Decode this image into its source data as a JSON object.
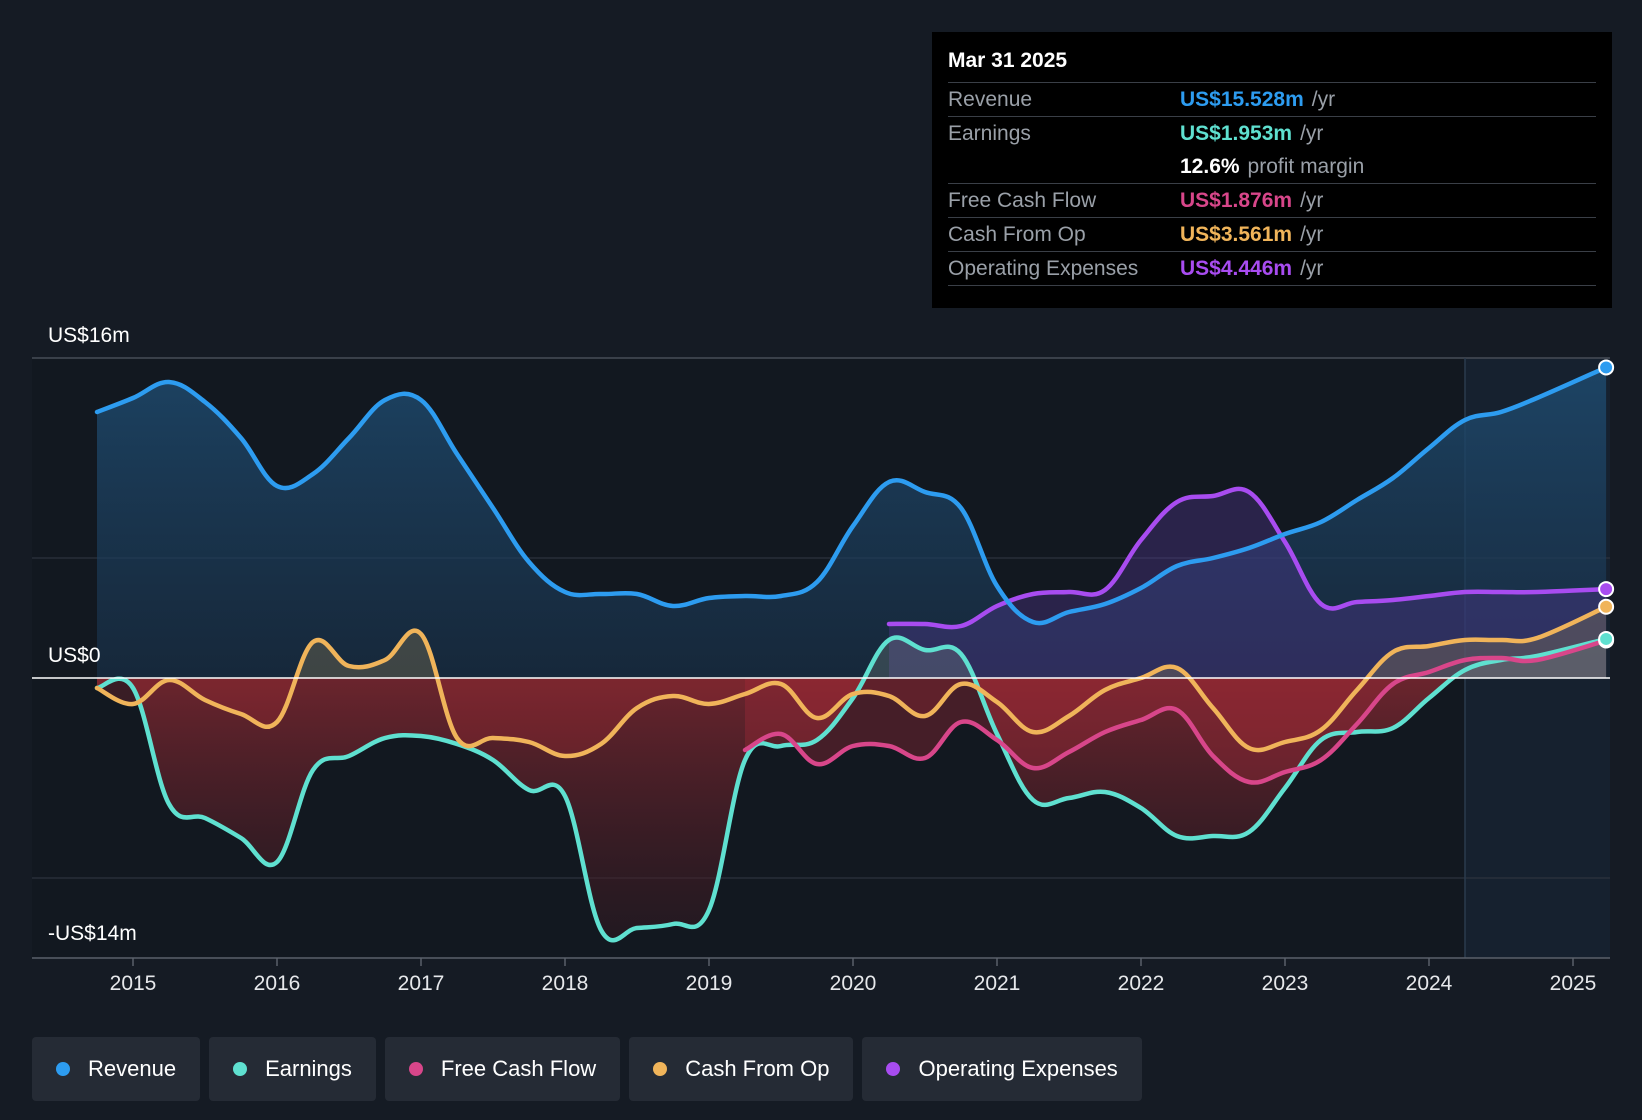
{
  "tooltip": {
    "date": "Mar 31 2025",
    "rows": [
      {
        "name": "Revenue",
        "value": "US$15.528m",
        "unit": "/yr",
        "color": "#2d9cf0"
      },
      {
        "name": "Earnings",
        "value": "US$1.953m",
        "unit": "/yr",
        "color": "#5fe0d0"
      },
      {
        "name": "",
        "value": "12.6%",
        "unit": "profit margin",
        "color": "#ffffff"
      },
      {
        "name": "Free Cash Flow",
        "value": "US$1.876m",
        "unit": "/yr",
        "color": "#d8468a"
      },
      {
        "name": "Cash From Op",
        "value": "US$3.561m",
        "unit": "/yr",
        "color": "#f0b45a"
      },
      {
        "name": "Operating Expenses",
        "value": "US$4.446m",
        "unit": "/yr",
        "color": "#a84cf0"
      }
    ]
  },
  "chart_data": {
    "type": "line",
    "title": "",
    "xlabel": "",
    "ylabel": "",
    "ylim": [
      -14,
      16
    ],
    "y_tick_labels": [
      {
        "value": 16,
        "label": "US$16m"
      },
      {
        "value": 0,
        "label": "US$0"
      },
      {
        "value": -14,
        "label": "-US$14m"
      }
    ],
    "x_ticks": [
      2015,
      2016,
      2017,
      2018,
      2019,
      2020,
      2021,
      2022,
      2023,
      2024,
      2025
    ],
    "x_range": [
      2014.3,
      2025.23
    ],
    "forecast_start": 2024.25,
    "series": [
      {
        "name": "Revenue",
        "color": "#2d9cf0",
        "points": [
          [
            2014.75,
            13.3
          ],
          [
            2015.0,
            14.0
          ],
          [
            2015.25,
            14.8
          ],
          [
            2015.5,
            13.8
          ],
          [
            2015.75,
            12.0
          ],
          [
            2016.0,
            9.6
          ],
          [
            2016.25,
            10.2
          ],
          [
            2016.5,
            12.0
          ],
          [
            2016.75,
            13.9
          ],
          [
            2017.0,
            13.9
          ],
          [
            2017.25,
            11.2
          ],
          [
            2017.5,
            8.5
          ],
          [
            2017.75,
            5.8
          ],
          [
            2018.0,
            4.3
          ],
          [
            2018.25,
            4.2
          ],
          [
            2018.5,
            4.2
          ],
          [
            2018.75,
            3.6
          ],
          [
            2019.0,
            4.0
          ],
          [
            2019.25,
            4.1
          ],
          [
            2019.5,
            4.1
          ],
          [
            2019.75,
            4.8
          ],
          [
            2020.0,
            7.6
          ],
          [
            2020.25,
            9.8
          ],
          [
            2020.5,
            9.3
          ],
          [
            2020.75,
            8.5
          ],
          [
            2021.0,
            4.6
          ],
          [
            2021.25,
            2.8
          ],
          [
            2021.5,
            3.3
          ],
          [
            2021.75,
            3.7
          ],
          [
            2022.0,
            4.5
          ],
          [
            2022.25,
            5.6
          ],
          [
            2022.5,
            6.0
          ],
          [
            2022.75,
            6.5
          ],
          [
            2023.0,
            7.2
          ],
          [
            2023.25,
            7.8
          ],
          [
            2023.5,
            8.9
          ],
          [
            2023.75,
            10.0
          ],
          [
            2024.0,
            11.5
          ],
          [
            2024.25,
            12.9
          ],
          [
            2024.5,
            13.3
          ],
          [
            2024.75,
            14.0
          ],
          [
            2025.23,
            15.528
          ]
        ]
      },
      {
        "name": "Earnings",
        "color": "#5fe0d0",
        "points": [
          [
            2014.75,
            -0.5
          ],
          [
            2015.0,
            -0.5
          ],
          [
            2015.25,
            -6.3
          ],
          [
            2015.5,
            -7.0
          ],
          [
            2015.75,
            -8.0
          ],
          [
            2016.0,
            -9.2
          ],
          [
            2016.25,
            -4.6
          ],
          [
            2016.5,
            -3.9
          ],
          [
            2016.75,
            -3.0
          ],
          [
            2017.0,
            -2.9
          ],
          [
            2017.25,
            -3.3
          ],
          [
            2017.5,
            -4.1
          ],
          [
            2017.75,
            -5.6
          ],
          [
            2018.0,
            -5.9
          ],
          [
            2018.25,
            -12.6
          ],
          [
            2018.5,
            -12.5
          ],
          [
            2018.75,
            -12.3
          ],
          [
            2019.0,
            -11.6
          ],
          [
            2019.25,
            -4.1
          ],
          [
            2019.5,
            -3.4
          ],
          [
            2019.75,
            -3.1
          ],
          [
            2020.0,
            -1.0
          ],
          [
            2020.25,
            1.9
          ],
          [
            2020.5,
            1.4
          ],
          [
            2020.75,
            1.2
          ],
          [
            2021.0,
            -2.8
          ],
          [
            2021.25,
            -6.1
          ],
          [
            2021.5,
            -6.0
          ],
          [
            2021.75,
            -5.7
          ],
          [
            2022.0,
            -6.5
          ],
          [
            2022.25,
            -7.9
          ],
          [
            2022.5,
            -7.9
          ],
          [
            2022.75,
            -7.7
          ],
          [
            2023.0,
            -5.5
          ],
          [
            2023.25,
            -3.1
          ],
          [
            2023.5,
            -2.7
          ],
          [
            2023.75,
            -2.5
          ],
          [
            2024.0,
            -1.0
          ],
          [
            2024.25,
            0.4
          ],
          [
            2024.5,
            0.9
          ],
          [
            2024.75,
            1.1
          ],
          [
            2025.23,
            1.953
          ]
        ]
      },
      {
        "name": "Free Cash Flow",
        "color": "#d8468a",
        "points": [
          [
            2019.25,
            -3.6
          ],
          [
            2019.5,
            -2.8
          ],
          [
            2019.75,
            -4.3
          ],
          [
            2020.0,
            -3.4
          ],
          [
            2020.25,
            -3.4
          ],
          [
            2020.5,
            -4.0
          ],
          [
            2020.75,
            -2.2
          ],
          [
            2021.0,
            -3.1
          ],
          [
            2021.25,
            -4.5
          ],
          [
            2021.5,
            -3.7
          ],
          [
            2021.75,
            -2.7
          ],
          [
            2022.0,
            -2.1
          ],
          [
            2022.25,
            -1.6
          ],
          [
            2022.5,
            -3.9
          ],
          [
            2022.75,
            -5.2
          ],
          [
            2023.0,
            -4.7
          ],
          [
            2023.25,
            -4.1
          ],
          [
            2023.5,
            -2.3
          ],
          [
            2023.75,
            -0.3
          ],
          [
            2024.0,
            0.3
          ],
          [
            2024.25,
            0.9
          ],
          [
            2024.5,
            1.0
          ],
          [
            2024.75,
            0.9
          ],
          [
            2025.23,
            1.876
          ]
        ]
      },
      {
        "name": "Cash From Op",
        "color": "#f0b45a",
        "points": [
          [
            2014.75,
            -0.5
          ],
          [
            2015.0,
            -1.3
          ],
          [
            2015.25,
            -0.1
          ],
          [
            2015.5,
            -1.1
          ],
          [
            2015.75,
            -1.8
          ],
          [
            2016.0,
            -2.2
          ],
          [
            2016.25,
            1.8
          ],
          [
            2016.5,
            0.6
          ],
          [
            2016.75,
            0.9
          ],
          [
            2017.0,
            2.2
          ],
          [
            2017.25,
            -3.0
          ],
          [
            2017.5,
            -3.0
          ],
          [
            2017.75,
            -3.2
          ],
          [
            2018.0,
            -3.9
          ],
          [
            2018.25,
            -3.3
          ],
          [
            2018.5,
            -1.5
          ],
          [
            2018.75,
            -0.9
          ],
          [
            2019.0,
            -1.3
          ],
          [
            2019.25,
            -0.8
          ],
          [
            2019.5,
            -0.3
          ],
          [
            2019.75,
            -2.0
          ],
          [
            2020.0,
            -0.8
          ],
          [
            2020.25,
            -0.9
          ],
          [
            2020.5,
            -1.9
          ],
          [
            2020.75,
            -0.3
          ],
          [
            2021.0,
            -1.2
          ],
          [
            2021.25,
            -2.7
          ],
          [
            2021.5,
            -1.9
          ],
          [
            2021.75,
            -0.6
          ],
          [
            2022.0,
            0.0
          ],
          [
            2022.25,
            0.5
          ],
          [
            2022.5,
            -1.5
          ],
          [
            2022.75,
            -3.5
          ],
          [
            2023.0,
            -3.2
          ],
          [
            2023.25,
            -2.6
          ],
          [
            2023.5,
            -0.6
          ],
          [
            2023.75,
            1.3
          ],
          [
            2024.0,
            1.6
          ],
          [
            2024.25,
            1.9
          ],
          [
            2024.5,
            1.9
          ],
          [
            2024.75,
            2.0
          ],
          [
            2025.23,
            3.561
          ]
        ]
      },
      {
        "name": "Operating Expenses",
        "color": "#a84cf0",
        "points": [
          [
            2020.25,
            2.7
          ],
          [
            2020.5,
            2.7
          ],
          [
            2020.75,
            2.6
          ],
          [
            2021.0,
            3.6
          ],
          [
            2021.25,
            4.2
          ],
          [
            2021.5,
            4.3
          ],
          [
            2021.75,
            4.4
          ],
          [
            2022.0,
            6.9
          ],
          [
            2022.25,
            8.8
          ],
          [
            2022.5,
            9.1
          ],
          [
            2022.75,
            9.3
          ],
          [
            2023.0,
            6.8
          ],
          [
            2023.25,
            3.7
          ],
          [
            2023.5,
            3.8
          ],
          [
            2023.75,
            3.9
          ],
          [
            2024.0,
            4.1
          ],
          [
            2024.25,
            4.3
          ],
          [
            2024.5,
            4.3
          ],
          [
            2024.75,
            4.3
          ],
          [
            2025.23,
            4.446
          ]
        ]
      }
    ]
  },
  "legend": {
    "items": [
      {
        "label": "Revenue",
        "color": "#2d9cf0"
      },
      {
        "label": "Earnings",
        "color": "#5fe0d0"
      },
      {
        "label": "Free Cash Flow",
        "color": "#d8468a"
      },
      {
        "label": "Cash From Op",
        "color": "#f0b45a"
      },
      {
        "label": "Operating Expenses",
        "color": "#a84cf0"
      }
    ]
  }
}
